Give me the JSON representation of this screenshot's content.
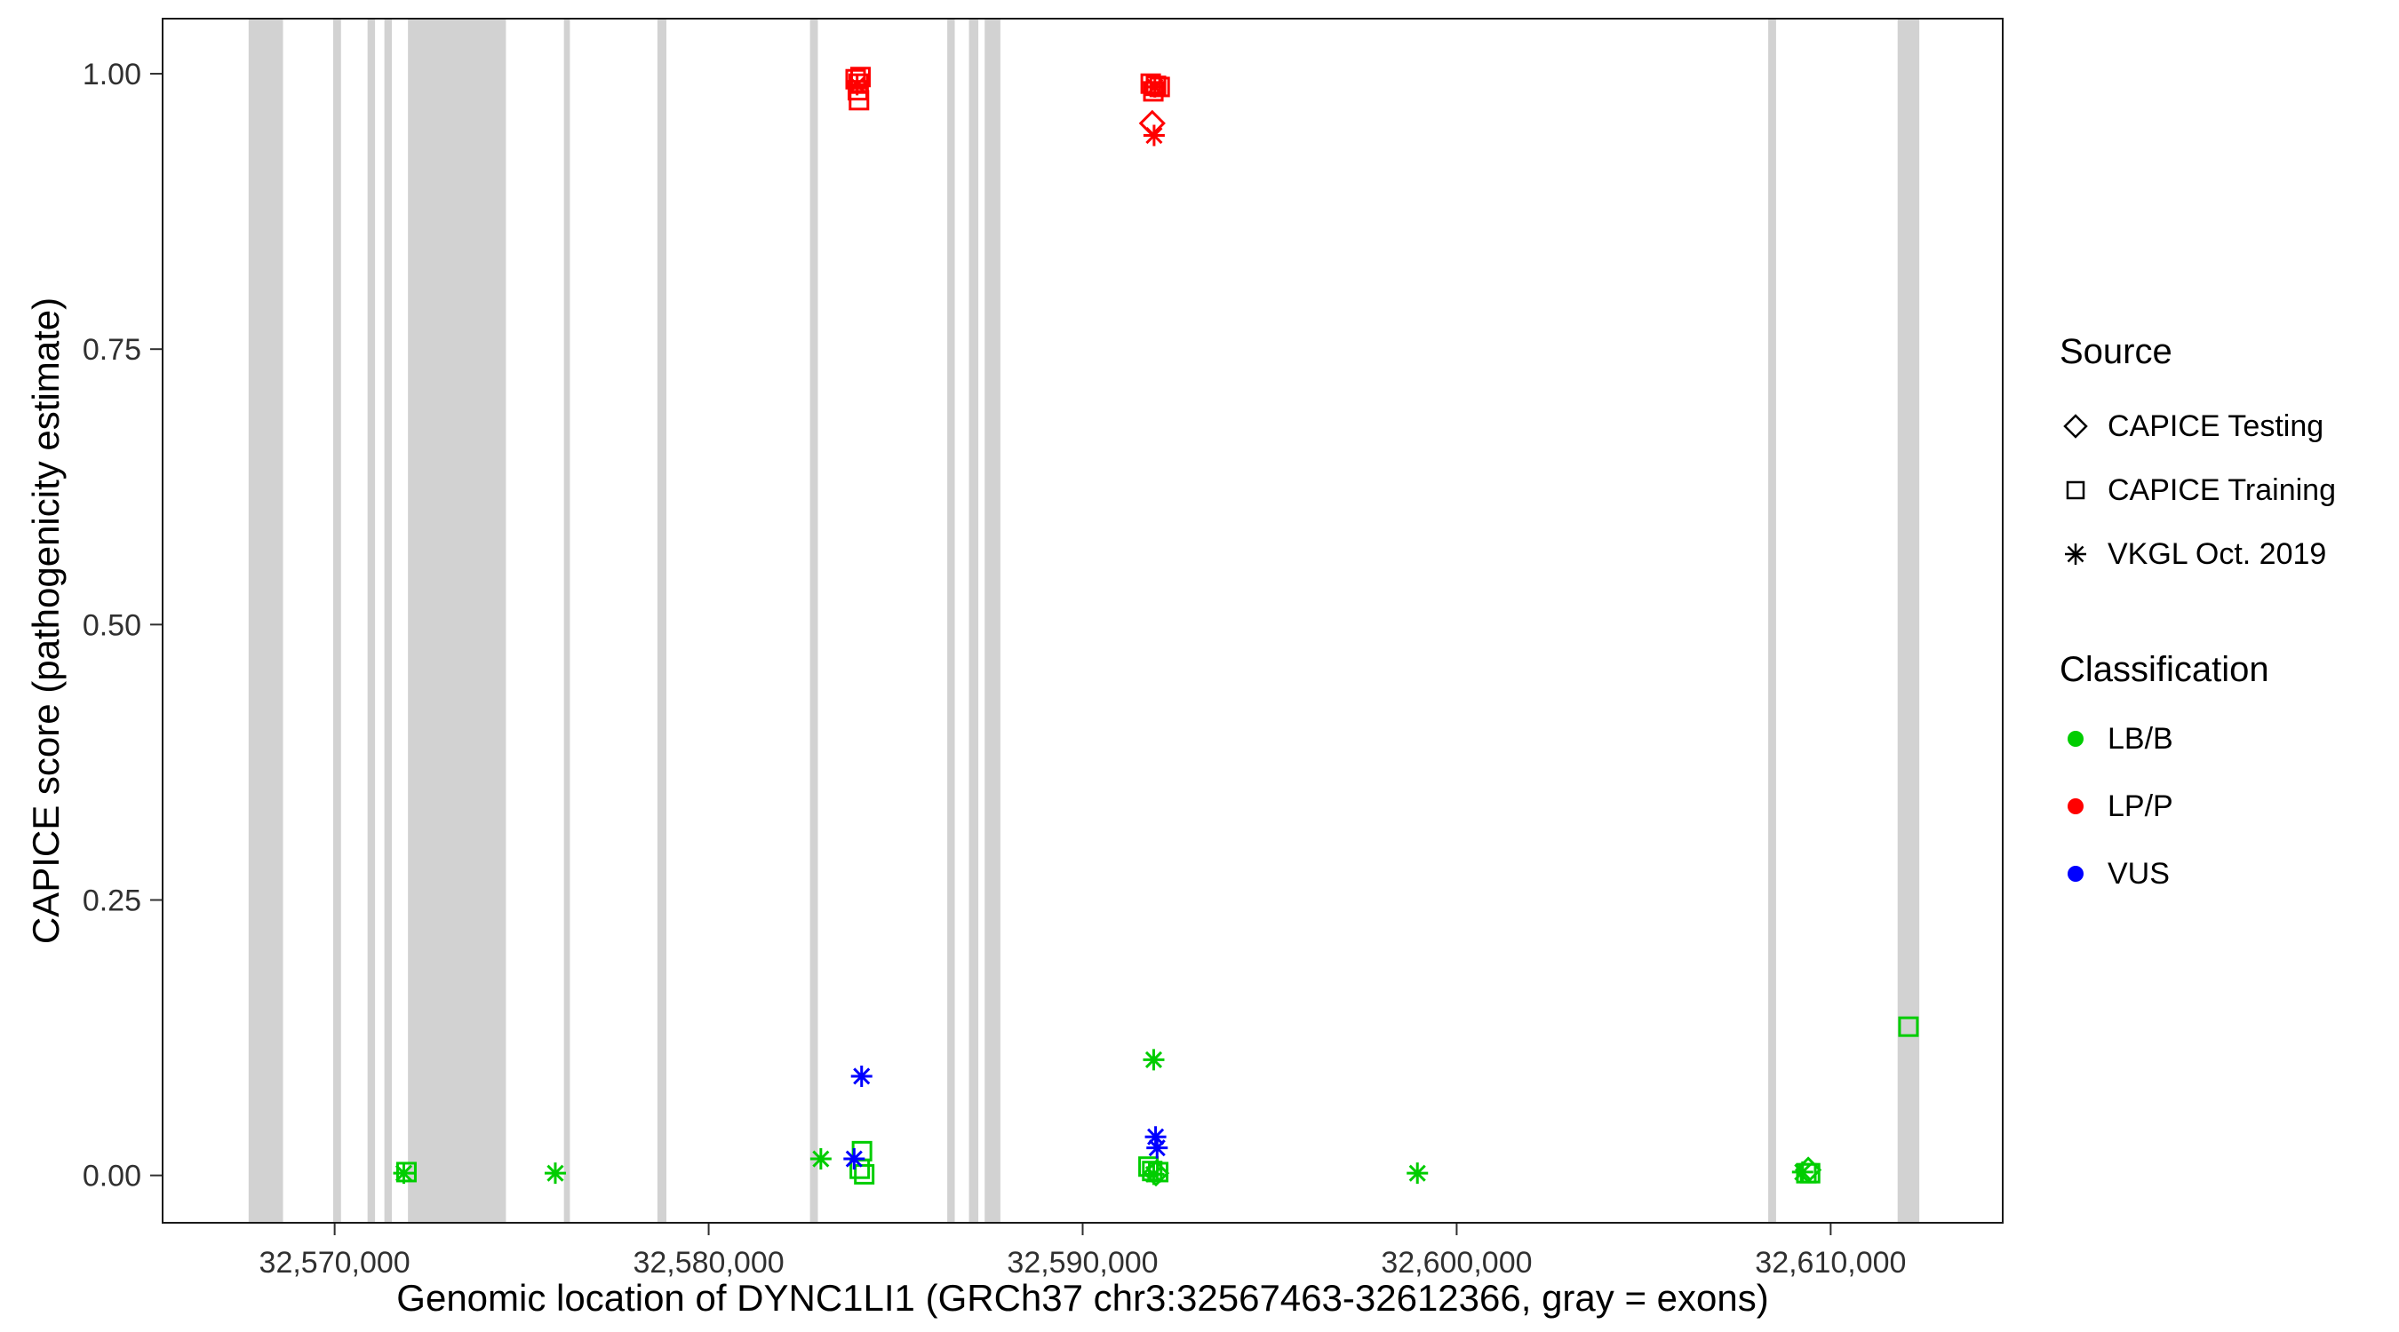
{
  "chart_data": {
    "type": "scatter",
    "title": "",
    "xlabel": "Genomic location of DYNC1LI1 (GRCh37 chr3:32567463-32612366, gray = exons)",
    "ylabel": "CAPICE score (pathogenicity estimate)",
    "xlim": [
      32565400,
      32614600
    ],
    "ylim": [
      -0.043,
      1.05
    ],
    "grid": "off",
    "legend_position": "right",
    "x_ticks": [
      {
        "value": 32570000,
        "label": "32,570,000"
      },
      {
        "value": 32580000,
        "label": "32,580,000"
      },
      {
        "value": 32590000,
        "label": "32,590,000"
      },
      {
        "value": 32600000,
        "label": "32,600,000"
      },
      {
        "value": 32610000,
        "label": "32,610,000"
      }
    ],
    "y_ticks": [
      {
        "value": 0.0,
        "label": "0.00"
      },
      {
        "value": 0.25,
        "label": "0.25"
      },
      {
        "value": 0.5,
        "label": "0.50"
      },
      {
        "value": 0.75,
        "label": "0.75"
      },
      {
        "value": 1.0,
        "label": "1.00"
      }
    ],
    "exon_color": "#d2d2d2",
    "exons": [
      [
        32567700,
        32568620
      ],
      [
        32569960,
        32570170
      ],
      [
        32570880,
        32571080
      ],
      [
        32571330,
        32571530
      ],
      [
        32571960,
        32574580
      ],
      [
        32576130,
        32576290
      ],
      [
        32578630,
        32578870
      ],
      [
        32582710,
        32582920
      ],
      [
        32586380,
        32586580
      ],
      [
        32586960,
        32587210
      ],
      [
        32587380,
        32587800
      ],
      [
        32608330,
        32608540
      ],
      [
        32611790,
        32612370
      ]
    ],
    "classification_colors": {
      "LB/B": "#00cd00",
      "LP/P": "#ff0000",
      "VUS": "#0000ff"
    },
    "source_shapes": {
      "CAPICE Testing": "diamond",
      "CAPICE Training": "square",
      "VKGL Oct. 2019": "asterisk"
    },
    "points": [
      {
        "x": 32571850,
        "y": 0.002,
        "source": "VKGL Oct. 2019",
        "classification": "LB/B"
      },
      {
        "x": 32571920,
        "y": 0.003,
        "source": "CAPICE Training",
        "classification": "LB/B"
      },
      {
        "x": 32575900,
        "y": 0.002,
        "source": "VKGL Oct. 2019",
        "classification": "LB/B"
      },
      {
        "x": 32583000,
        "y": 0.015,
        "source": "VKGL Oct. 2019",
        "classification": "LB/B"
      },
      {
        "x": 32584100,
        "y": 0.022,
        "source": "CAPICE Training",
        "classification": "LB/B"
      },
      {
        "x": 32584040,
        "y": 0.006,
        "source": "CAPICE Training",
        "classification": "LB/B"
      },
      {
        "x": 32584160,
        "y": 0.001,
        "source": "CAPICE Training",
        "classification": "LB/B"
      },
      {
        "x": 32591900,
        "y": 0.105,
        "source": "VKGL Oct. 2019",
        "classification": "LB/B"
      },
      {
        "x": 32591760,
        "y": 0.008,
        "source": "CAPICE Training",
        "classification": "LB/B"
      },
      {
        "x": 32591860,
        "y": 0.004,
        "source": "CAPICE Training",
        "classification": "LB/B"
      },
      {
        "x": 32591960,
        "y": 0.002,
        "source": "CAPICE Testing",
        "classification": "LB/B"
      },
      {
        "x": 32592020,
        "y": 0.003,
        "source": "CAPICE Training",
        "classification": "LB/B"
      },
      {
        "x": 32591900,
        "y": 0.001,
        "source": "VKGL Oct. 2019",
        "classification": "LB/B"
      },
      {
        "x": 32598950,
        "y": 0.002,
        "source": "VKGL Oct. 2019",
        "classification": "LB/B"
      },
      {
        "x": 32609250,
        "y": 0.003,
        "source": "VKGL Oct. 2019",
        "classification": "LB/B"
      },
      {
        "x": 32609350,
        "y": 0.002,
        "source": "CAPICE Training",
        "classification": "LB/B"
      },
      {
        "x": 32609450,
        "y": 0.002,
        "source": "CAPICE Training",
        "classification": "LB/B"
      },
      {
        "x": 32609400,
        "y": 0.005,
        "source": "CAPICE Testing",
        "classification": "LB/B"
      },
      {
        "x": 32612080,
        "y": 0.135,
        "source": "CAPICE Training",
        "classification": "LB/B"
      },
      {
        "x": 32584090,
        "y": 0.09,
        "source": "VKGL Oct. 2019",
        "classification": "VUS"
      },
      {
        "x": 32583890,
        "y": 0.015,
        "source": "VKGL Oct. 2019",
        "classification": "VUS"
      },
      {
        "x": 32591950,
        "y": 0.035,
        "source": "VKGL Oct. 2019",
        "classification": "VUS"
      },
      {
        "x": 32591990,
        "y": 0.025,
        "source": "VKGL Oct. 2019",
        "classification": "VUS"
      },
      {
        "x": 32583930,
        "y": 0.995,
        "source": "CAPICE Training",
        "classification": "LP/P"
      },
      {
        "x": 32584060,
        "y": 0.997,
        "source": "CAPICE Training",
        "classification": "LP/P"
      },
      {
        "x": 32584010,
        "y": 0.991,
        "source": "CAPICE Training",
        "classification": "LP/P"
      },
      {
        "x": 32583970,
        "y": 0.99,
        "source": "VKGL Oct. 2019",
        "classification": "LP/P"
      },
      {
        "x": 32583990,
        "y": 0.985,
        "source": "CAPICE Training",
        "classification": "LP/P"
      },
      {
        "x": 32584020,
        "y": 0.976,
        "source": "CAPICE Training",
        "classification": "LP/P"
      },
      {
        "x": 32591820,
        "y": 0.991,
        "source": "CAPICE Training",
        "classification": "LP/P"
      },
      {
        "x": 32591960,
        "y": 0.989,
        "source": "CAPICE Training",
        "classification": "LP/P"
      },
      {
        "x": 32592060,
        "y": 0.988,
        "source": "CAPICE Training",
        "classification": "LP/P"
      },
      {
        "x": 32591890,
        "y": 0.984,
        "source": "CAPICE Training",
        "classification": "LP/P"
      },
      {
        "x": 32591930,
        "y": 0.988,
        "source": "VKGL Oct. 2019",
        "classification": "LP/P"
      },
      {
        "x": 32591860,
        "y": 0.955,
        "source": "CAPICE Testing",
        "classification": "LP/P"
      },
      {
        "x": 32591910,
        "y": 0.944,
        "source": "VKGL Oct. 2019",
        "classification": "LP/P"
      }
    ]
  },
  "legend": {
    "source": {
      "title": "Source",
      "items": [
        {
          "label": "CAPICE Testing",
          "shape": "diamond"
        },
        {
          "label": "CAPICE Training",
          "shape": "square"
        },
        {
          "label": "VKGL Oct. 2019",
          "shape": "asterisk"
        }
      ]
    },
    "classification": {
      "title": "Classification",
      "items": [
        {
          "label": "LB/B",
          "color": "#00cd00"
        },
        {
          "label": "LP/P",
          "color": "#ff0000"
        },
        {
          "label": "VUS",
          "color": "#0000ff"
        }
      ]
    }
  }
}
